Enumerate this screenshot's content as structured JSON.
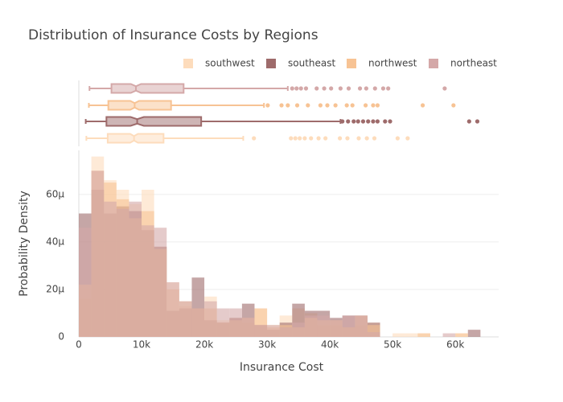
{
  "chart_data": {
    "type": "histogram",
    "title": "Distribution of Insurance Costs by Regions",
    "x_label": "Insurance Cost",
    "y_label": "Probability Density",
    "bins": [
      0,
      2000,
      4000,
      6000,
      8000,
      10000,
      12000,
      14000,
      16000,
      18000,
      20000,
      22000,
      24000,
      26000,
      28000,
      30000,
      32000,
      34000,
      36000,
      38000,
      40000,
      42000,
      44000,
      46000,
      48000,
      50000,
      52000,
      54000,
      56000,
      58000,
      60000,
      62000,
      64000
    ],
    "xlim": [
      0,
      66900
    ],
    "xticks": [
      0,
      {
        "value": 10000,
        "label": "10k"
      },
      {
        "value": 20000,
        "label": "20k"
      },
      {
        "value": 30000,
        "label": "30k"
      },
      {
        "value": 40000,
        "label": "40k"
      },
      {
        "value": 50000,
        "label": "50k"
      },
      {
        "value": 60000,
        "label": "60k"
      }
    ],
    "ylim": [
      0,
      7.86e-05
    ],
    "yticks": [
      0,
      {
        "value": 2e-05,
        "label": "20μ"
      },
      {
        "value": 4e-05,
        "label": "40μ"
      },
      {
        "value": 6e-05,
        "label": "60μ"
      }
    ],
    "grid": true,
    "legend_position": "top-right",
    "series": [
      {
        "name": "southwest",
        "color": "#fddcbc",
        "values": [
          1.6e-05,
          7.6e-05,
          6.6e-05,
          6.2e-05,
          5.6e-05,
          6.2e-05,
          3.8e-05,
          2.3e-05,
          1.3e-05,
          1.2e-05,
          1.7e-05,
          7e-06,
          8e-06,
          6e-06,
          1.2e-05,
          5e-06,
          9e-06,
          1.2e-05,
          1e-05,
          5e-06,
          5e-06,
          4e-06,
          5e-06,
          6e-06,
          0,
          1.5e-06,
          1.5e-06,
          1.5e-06,
          0,
          0,
          1.5e-06,
          0
        ],
        "box": {
          "lowerfence": 1200,
          "q1": 4600,
          "median": 8800,
          "q3": 13500,
          "upperfence": 26200,
          "outliers": [
            27900,
            33800,
            34500,
            35200,
            36000,
            37000,
            38200,
            39300,
            41600,
            42800,
            44600,
            45900,
            47100,
            50800,
            52400
          ]
        }
      },
      {
        "name": "southeast",
        "color": "#9e6b6b",
        "values": [
          5.2e-05,
          6.2e-05,
          5.2e-05,
          5.5e-05,
          5.3e-05,
          4.5e-05,
          3.8e-05,
          1.1e-05,
          1.2e-05,
          2.5e-05,
          7e-06,
          6e-06,
          8e-06,
          1.4e-05,
          5e-06,
          3e-06,
          6e-06,
          1.4e-05,
          1.1e-05,
          1.1e-05,
          8e-06,
          9e-06,
          9e-06,
          6e-06,
          0,
          0,
          0,
          0,
          0,
          0,
          0,
          3e-06
        ],
        "box": {
          "lowerfence": 1100,
          "q1": 4400,
          "median": 9300,
          "q3": 19500,
          "upperfence": 41700,
          "outliers": [
            42000,
            42900,
            43800,
            44500,
            45300,
            46100,
            46900,
            47600,
            48800,
            49600,
            62200,
            63500
          ]
        }
      },
      {
        "name": "northwest",
        "color": "#f7c394",
        "values": [
          2.2e-05,
          7e-05,
          6.5e-05,
          5.8e-05,
          5e-05,
          5.3e-05,
          3.7e-05,
          2e-05,
          1.5e-05,
          1.2e-05,
          1.2e-05,
          6e-06,
          7e-06,
          8e-06,
          1.2e-05,
          4e-06,
          5e-06,
          4e-06,
          8e-06,
          7e-06,
          7e-06,
          4e-06,
          9e-06,
          5e-06,
          0,
          0,
          0,
          1.5e-06,
          0,
          0,
          1.5e-06,
          0
        ],
        "box": {
          "lowerfence": 1600,
          "q1": 4700,
          "median": 8900,
          "q3": 14700,
          "upperfence": 29500,
          "outliers": [
            30100,
            32300,
            33300,
            34800,
            36500,
            38500,
            39600,
            40900,
            42700,
            43600,
            45700,
            46900,
            47600,
            54800,
            59700
          ]
        }
      },
      {
        "name": "northeast",
        "color": "#d4a8a8",
        "values": [
          4.6e-05,
          7e-05,
          5.7e-05,
          5.4e-05,
          5.7e-05,
          4.7e-05,
          4.6e-05,
          2.3e-05,
          1.5e-05,
          1.2e-05,
          1.5e-05,
          1.2e-05,
          1.2e-05,
          8e-06,
          5e-06,
          5e-06,
          4e-06,
          6e-06,
          9e-06,
          9e-06,
          7e-06,
          9e-06,
          9e-06,
          2e-06,
          0,
          0,
          0,
          0,
          0,
          1.5e-06,
          0,
          0
        ],
        "box": {
          "lowerfence": 1700,
          "q1": 5200,
          "median": 9100,
          "q3": 16700,
          "upperfence": 33300,
          "outliers": [
            34000,
            34700,
            35400,
            36200,
            37900,
            39100,
            40200,
            41700,
            43000,
            44800,
            45800,
            47200,
            48500,
            49300,
            58300
          ]
        }
      }
    ]
  }
}
